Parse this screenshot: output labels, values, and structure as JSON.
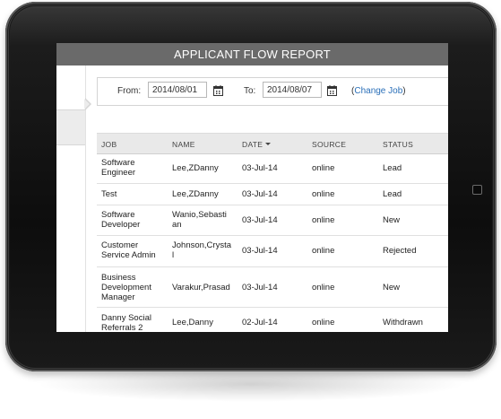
{
  "report": {
    "title": "APPLICANT FLOW REPORT"
  },
  "filters": {
    "from_label": "From:",
    "from_value": "2014/08/01",
    "to_label": "To:",
    "to_value": "2014/08/07",
    "change_job_open": "(",
    "change_job_label": "Change Job",
    "change_job_close": ")"
  },
  "table": {
    "columns": [
      "JOB",
      "NAME",
      "DATE",
      "SOURCE",
      "STATUS"
    ],
    "sorted_column": "DATE",
    "rows": [
      {
        "job": "Software Engineer",
        "name": "Lee,ZDanny",
        "date": "03-Jul-14",
        "source": "online",
        "status": "Lead"
      },
      {
        "job": "Test",
        "name": "Lee,ZDanny",
        "date": "03-Jul-14",
        "source": "online",
        "status": "Lead"
      },
      {
        "job": "Software Developer",
        "name": "Wanio,Sebastian",
        "date": "03-Jul-14",
        "source": "online",
        "status": "New"
      },
      {
        "job": "Customer Service Admin",
        "name": "Johnson,Crystal",
        "date": "03-Jul-14",
        "source": "online",
        "status": "Rejected"
      },
      {
        "job": "Business Development Manager",
        "name": "Varakur,Prasad",
        "date": "03-Jul-14",
        "source": "online",
        "status": "New"
      },
      {
        "job": "Danny Social Referrals 2",
        "name": "Lee,Danny",
        "date": "02-Jul-14",
        "source": "online",
        "status": "Withdrawn"
      }
    ]
  },
  "colors": {
    "header_bar": "#6a6a6a",
    "link": "#2a6fb8",
    "table_header": "#e9e9e9"
  },
  "icons": {
    "date_picker": "calendar-icon",
    "sort": "sort-desc-icon"
  }
}
